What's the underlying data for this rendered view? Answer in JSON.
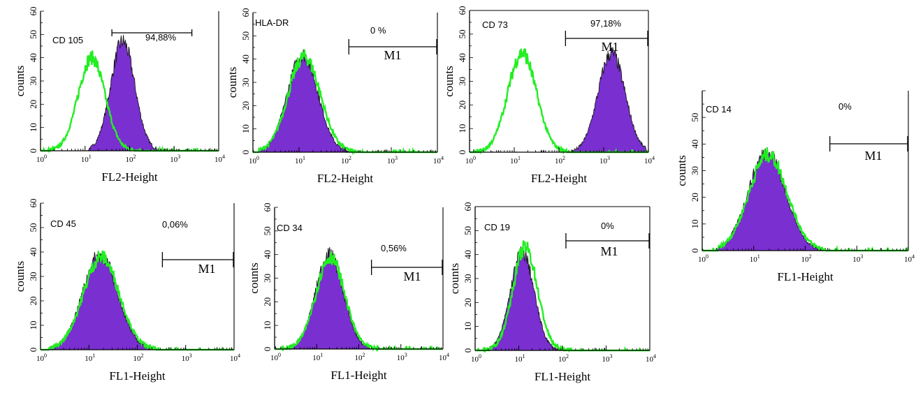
{
  "colors": {
    "filled": "#7a2fd0",
    "filled_edge": "#1a1a1a",
    "isotype": "#22ee22",
    "axis": "#000000"
  },
  "chart_data": [
    {
      "type": "area",
      "marker": "CD 105",
      "percent": "94,88%",
      "xlabel": "FL2-Height",
      "ylabel": "counts",
      "xscale": "log",
      "xlim": [
        1,
        10000
      ],
      "ylim": [
        0,
        60
      ],
      "yticks": [
        "0",
        "10",
        "20",
        "30",
        "40",
        "50",
        "60"
      ],
      "xticks": [
        "10",
        "10",
        "10",
        "10",
        "10"
      ],
      "xtick_exp": [
        "0",
        "1",
        "2",
        "3",
        "4"
      ],
      "gate_label": "",
      "gate_range": [
        40,
        2500
      ],
      "series": [
        {
          "role": "stained",
          "peak_x": 70,
          "peak_y": 47,
          "sigma_decades": 0.27,
          "lo_x": 12,
          "hi_x": 2500
        },
        {
          "role": "isotype",
          "peak_x": 14,
          "peak_y": 40,
          "sigma_decades": 0.3,
          "lo_x": 1.5,
          "hi_x": 200
        }
      ]
    },
    {
      "type": "area",
      "marker": "HLA-DR",
      "percent": "0 %",
      "xlabel": "FL2-Height",
      "ylabel": "counts",
      "xscale": "log",
      "xlim": [
        1,
        10000
      ],
      "ylim": [
        0,
        60
      ],
      "yticks": [
        "0",
        "10",
        "20",
        "30",
        "40",
        "50",
        "60"
      ],
      "xticks": [
        "10",
        "10",
        "10",
        "10",
        "10"
      ],
      "xtick_exp": [
        "0",
        "1",
        "2",
        "3",
        "4"
      ],
      "gate_label": "M1",
      "gate_range": [
        120,
        10000
      ],
      "series": [
        {
          "role": "stained",
          "peak_x": 12,
          "peak_y": 42,
          "sigma_decades": 0.33,
          "lo_x": 1.3,
          "hi_x": 200
        },
        {
          "role": "isotype",
          "peak_x": 13,
          "peak_y": 41,
          "sigma_decades": 0.35,
          "lo_x": 1.3,
          "hi_x": 200
        }
      ]
    },
    {
      "type": "area",
      "marker": "CD 73",
      "percent": "97,18%",
      "xlabel": "FL2-Height",
      "ylabel": "counts",
      "xscale": "log",
      "xlim": [
        1,
        10000
      ],
      "ylim": [
        0,
        60
      ],
      "yticks": [
        "0",
        "10",
        "20",
        "30",
        "40",
        "50",
        "60"
      ],
      "xticks": [
        "10",
        "10",
        "10",
        "10",
        "10"
      ],
      "xtick_exp": [
        "0",
        "1",
        "2",
        "3",
        "4"
      ],
      "gate_label": "M1",
      "gate_range": [
        140,
        10000
      ],
      "series": [
        {
          "role": "stained",
          "peak_x": 1500,
          "peak_y": 42,
          "sigma_decades": 0.3,
          "lo_x": 150,
          "hi_x": 9000
        },
        {
          "role": "isotype",
          "peak_x": 15,
          "peak_y": 42,
          "sigma_decades": 0.32,
          "lo_x": 1.5,
          "hi_x": 150
        }
      ]
    },
    {
      "type": "area",
      "marker": "CD 14",
      "percent": "0%",
      "xlabel": "FL1-Height",
      "ylabel": "counts",
      "xscale": "log",
      "xlim": [
        1,
        10000
      ],
      "ylim": [
        0,
        60
      ],
      "yticks": [
        "0",
        "10",
        "20",
        "30",
        "40",
        "50"
      ],
      "xticks": [
        "10",
        "10",
        "10",
        "10",
        "10"
      ],
      "xtick_exp": [
        "0",
        "1",
        "2",
        "3",
        "4"
      ],
      "gate_label": "M1",
      "gate_range": [
        300,
        10000
      ],
      "series": [
        {
          "role": "stained",
          "peak_x": 18,
          "peak_y": 37,
          "sigma_decades": 0.36,
          "lo_x": 2,
          "hi_x": 250
        },
        {
          "role": "isotype",
          "peak_x": 19,
          "peak_y": 36,
          "sigma_decades": 0.37,
          "lo_x": 2,
          "hi_x": 250
        }
      ]
    },
    {
      "type": "area",
      "marker": "CD 45",
      "percent": "0,06%",
      "xlabel": "FL1-Height",
      "ylabel": "counts",
      "xscale": "log",
      "xlim": [
        1,
        10000
      ],
      "ylim": [
        0,
        60
      ],
      "yticks": [
        "0",
        "10",
        "20",
        "30",
        "40",
        "50",
        "60"
      ],
      "xticks": [
        "10",
        "10",
        "10",
        "10",
        "10"
      ],
      "xtick_exp": [
        "0",
        "1",
        "2",
        "3",
        "4"
      ],
      "gate_label": "M1",
      "gate_range": [
        330,
        10000
      ],
      "series": [
        {
          "role": "stained",
          "peak_x": 17,
          "peak_y": 39,
          "sigma_decades": 0.36,
          "lo_x": 1.5,
          "hi_x": 250
        },
        {
          "role": "isotype",
          "peak_x": 18,
          "peak_y": 38,
          "sigma_decades": 0.37,
          "lo_x": 1.5,
          "hi_x": 250
        }
      ]
    },
    {
      "type": "area",
      "marker": "CD 34",
      "percent": "0,56%",
      "xlabel": "FL1-Height",
      "ylabel": "counts",
      "xscale": "log",
      "xlim": [
        1,
        10000
      ],
      "ylim": [
        0,
        60
      ],
      "yticks": [
        "0",
        "10",
        "20",
        "30",
        "40",
        "50",
        "60"
      ],
      "xticks": [
        "10",
        "10",
        "10",
        "10",
        "10"
      ],
      "xtick_exp": [
        "0",
        "1",
        "2",
        "3",
        "4"
      ],
      "gate_label": "M1",
      "gate_range": [
        200,
        10000
      ],
      "series": [
        {
          "role": "stained",
          "peak_x": 20,
          "peak_y": 40,
          "sigma_decades": 0.33,
          "lo_x": 1.5,
          "hi_x": 300
        },
        {
          "role": "isotype",
          "peak_x": 21,
          "peak_y": 39,
          "sigma_decades": 0.34,
          "lo_x": 1.5,
          "hi_x": 300
        }
      ]
    },
    {
      "type": "area",
      "marker": "CD 19",
      "percent": "0%",
      "xlabel": "FL1-Height",
      "ylabel": "counts",
      "xscale": "log",
      "xlim": [
        1,
        10000
      ],
      "ylim": [
        0,
        60
      ],
      "yticks": [
        "0",
        "10",
        "20",
        "30",
        "40",
        "50",
        "60"
      ],
      "xticks": [
        "10",
        "10",
        "10",
        "10",
        "10"
      ],
      "xtick_exp": [
        "0",
        "1",
        "2",
        "3",
        "4"
      ],
      "gate_label": "M1",
      "gate_range": [
        120,
        10000
      ],
      "series": [
        {
          "role": "stained",
          "peak_x": 12,
          "peak_y": 41,
          "sigma_decades": 0.27,
          "lo_x": 1.5,
          "hi_x": 150
        },
        {
          "role": "isotype",
          "peak_x": 14,
          "peak_y": 43,
          "sigma_decades": 0.28,
          "lo_x": 1.5,
          "hi_x": 150
        }
      ]
    }
  ]
}
